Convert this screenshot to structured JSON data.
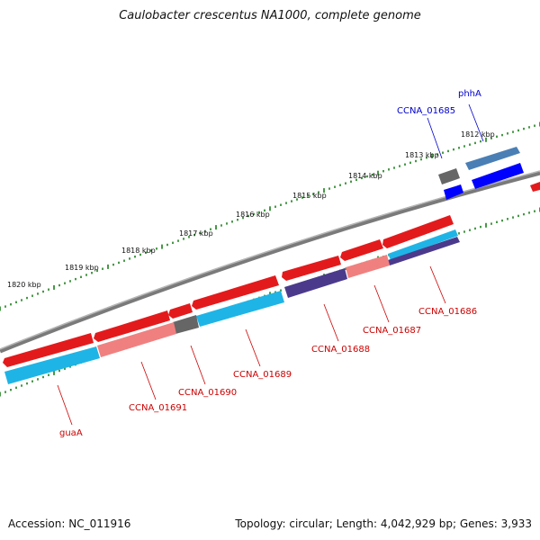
{
  "title": "Caulobacter crescentus NA1000, complete genome",
  "footer": {
    "accession": "Accession: NC_011916",
    "summary": "Topology: circular; Length: 4,042,929 bp; Genes: 3,933"
  },
  "colors": {
    "backbone": "#808080",
    "tick": "#1a7f1a",
    "forward_label": "#0000cc",
    "reverse_label": "#cc0000",
    "cds_red": "#e31a1c",
    "cds_cyan": "#1fb4e6",
    "cds_pink": "#f08080",
    "cds_purple": "#4b3a8c",
    "cds_grey": "#666666",
    "cds_blue": "#0000ff",
    "cds_steel": "#4a7fb5"
  },
  "scale_labels": [
    "1812 kbp",
    "1813 kbp",
    "1814 kbp",
    "1815 kbp",
    "1816 kbp",
    "1817 kbp",
    "1818 kbp",
    "1819 kbp",
    "1820 kbp"
  ],
  "gene_labels": {
    "forward": [
      "phhA",
      "CCNA_01685"
    ],
    "reverse": [
      "CCNA_01686",
      "CCNA_01687",
      "CCNA_01688",
      "CCNA_01689",
      "CCNA_01690",
      "CCNA_01691",
      "guaA"
    ]
  }
}
